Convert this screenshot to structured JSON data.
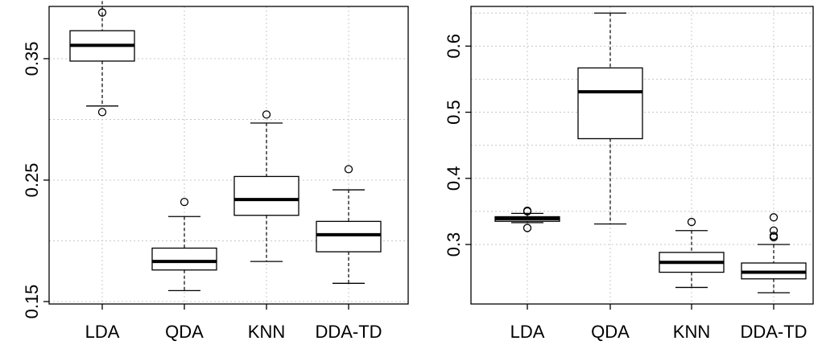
{
  "chart_data": [
    {
      "type": "box",
      "categories": [
        "LDA",
        "QDA",
        "KNN",
        "DDA-TD"
      ],
      "ylim": [
        0.148,
        0.393
      ],
      "yticks": [
        0.15,
        0.25,
        0.35
      ],
      "ytick_labels": [
        "0.15",
        "0.25",
        "0.35"
      ],
      "grid": true,
      "boxes": [
        {
          "category": "LDA",
          "whisker_low": 0.311,
          "q1": 0.348,
          "median": 0.361,
          "q3": 0.373,
          "whisker_high": 0.402,
          "outliers": [
            0.306,
            0.388
          ]
        },
        {
          "category": "QDA",
          "whisker_low": 0.159,
          "q1": 0.176,
          "median": 0.183,
          "q3": 0.194,
          "whisker_high": 0.22,
          "outliers": [
            0.232
          ]
        },
        {
          "category": "KNN",
          "whisker_low": 0.183,
          "q1": 0.221,
          "median": 0.234,
          "q3": 0.253,
          "whisker_high": 0.297,
          "outliers": [
            0.304
          ]
        },
        {
          "category": "DDA-TD",
          "whisker_low": 0.165,
          "q1": 0.191,
          "median": 0.205,
          "q3": 0.216,
          "whisker_high": 0.242,
          "outliers": [
            0.259
          ]
        }
      ]
    },
    {
      "type": "box",
      "categories": [
        "LDA",
        "QDA",
        "KNN",
        "DDA-TD"
      ],
      "ylim": [
        0.21,
        0.66
      ],
      "yticks": [
        0.3,
        0.4,
        0.5,
        0.6
      ],
      "ytick_labels": [
        "0.3",
        "0.4",
        "0.5",
        "0.6"
      ],
      "grid": true,
      "boxes": [
        {
          "category": "LDA",
          "whisker_low": 0.333,
          "q1": 0.335,
          "median": 0.339,
          "q3": 0.342,
          "whisker_high": 0.347,
          "outliers": [
            0.325,
            0.35,
            0.351
          ]
        },
        {
          "category": "QDA",
          "whisker_low": 0.331,
          "q1": 0.46,
          "median": 0.531,
          "q3": 0.567,
          "whisker_high": 0.65,
          "outliers": []
        },
        {
          "category": "KNN",
          "whisker_low": 0.235,
          "q1": 0.258,
          "median": 0.273,
          "q3": 0.288,
          "whisker_high": 0.321,
          "outliers": [
            0.334
          ]
        },
        {
          "category": "DDA-TD",
          "whisker_low": 0.227,
          "q1": 0.248,
          "median": 0.258,
          "q3": 0.272,
          "whisker_high": 0.3,
          "outliers": [
            0.311,
            0.313,
            0.321,
            0.341
          ]
        }
      ]
    }
  ]
}
